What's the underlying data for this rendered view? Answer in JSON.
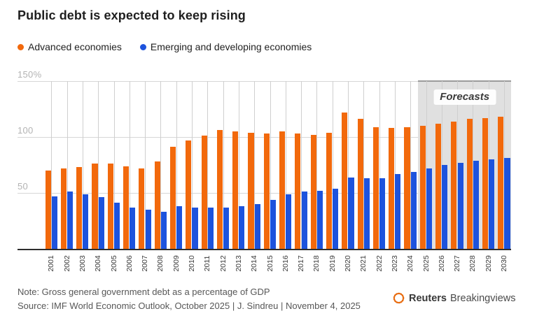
{
  "title": "Public debt is expected to keep rising",
  "chart_data": {
    "type": "bar",
    "title": "Public debt is expected to keep rising",
    "categories": [
      "2001",
      "2002",
      "2003",
      "2004",
      "2005",
      "2006",
      "2007",
      "2008",
      "2009",
      "2010",
      "2011",
      "2012",
      "2013",
      "2014",
      "2015",
      "2016",
      "2017",
      "2018",
      "2019",
      "2020",
      "2021",
      "2022",
      "2023",
      "2024",
      "2025",
      "2026",
      "2027",
      "2028",
      "2029",
      "2030"
    ],
    "series": [
      {
        "name": "Advanced economies",
        "color": "#f2690c",
        "values": [
          70,
          72,
          73,
          76,
          76,
          74,
          72,
          78,
          91,
          97,
          101,
          106,
          105,
          104,
          103,
          105,
          103,
          102,
          104,
          122,
          116,
          109,
          108,
          109,
          110,
          112,
          114,
          116,
          117,
          118
        ]
      },
      {
        "name": "Emerging and developing economies",
        "color": "#1d53dd",
        "values": [
          47,
          51,
          49,
          46,
          41,
          37,
          35,
          33,
          38,
          37,
          37,
          37,
          38,
          40,
          44,
          49,
          51,
          52,
          54,
          64,
          63,
          63,
          67,
          69,
          72,
          75,
          77,
          79,
          80,
          81
        ]
      }
    ],
    "ylim": [
      0,
      150
    ],
    "yticks": [
      {
        "value": 150,
        "label": "150%"
      },
      {
        "value": 100,
        "label": "100"
      },
      {
        "value": 50,
        "label": "50"
      }
    ],
    "grid": true,
    "legend_position": "top-left",
    "unit": "percent of GDP",
    "forecast": {
      "label": "Forecasts",
      "start_category": "2025"
    }
  },
  "footer": {
    "note": "Note: Gross general government debt as a percentage of GDP",
    "source": "Source: IMF World Economic Outlook, October 2025 | J. Sindreu | November 4, 2025"
  },
  "logo": {
    "brand": "Reuters",
    "suffix": "Breakingviews",
    "icon_color": "#f2690c"
  }
}
